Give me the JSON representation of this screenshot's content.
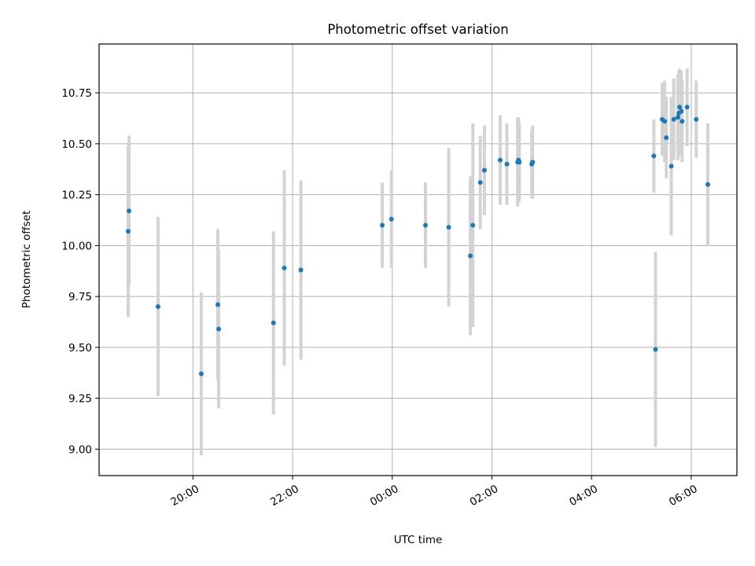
{
  "chart_data": {
    "type": "scatter",
    "title": "Photometric offset variation",
    "xlabel": "UTC time",
    "ylabel": "Photometric offset",
    "x_time_range": [
      "18:07",
      "06:55"
    ],
    "ylim": [
      8.87,
      10.99
    ],
    "x_ticks": [
      "20:00",
      "22:00",
      "00:00",
      "02:00",
      "04:00",
      "06:00"
    ],
    "y_ticks": [
      "9.00",
      "9.25",
      "9.50",
      "9.75",
      "10.00",
      "10.25",
      "10.50",
      "10.75"
    ],
    "grid": true,
    "point_color": "#1f77b4",
    "errorbar_color": "#d3d3d3",
    "points": [
      {
        "t": "18:42",
        "y": 10.07,
        "err": 0.42
      },
      {
        "t": "18:43",
        "y": 10.17,
        "err": 0.37
      },
      {
        "t": "19:18",
        "y": 9.7,
        "err": 0.44
      },
      {
        "t": "20:10",
        "y": 9.37,
        "err": 0.4
      },
      {
        "t": "20:30",
        "y": 9.71,
        "err": 0.37
      },
      {
        "t": "20:31",
        "y": 9.59,
        "err": 0.39
      },
      {
        "t": "21:37",
        "y": 9.62,
        "err": 0.45
      },
      {
        "t": "21:50",
        "y": 9.89,
        "err": 0.48
      },
      {
        "t": "22:10",
        "y": 9.88,
        "err": 0.44
      },
      {
        "t": "23:48",
        "y": 10.1,
        "err": 0.21
      },
      {
        "t": "23:59",
        "y": 10.13,
        "err": 0.24
      },
      {
        "t": "00:40",
        "y": 10.1,
        "err": 0.21
      },
      {
        "t": "01:08",
        "y": 10.09,
        "err": 0.39
      },
      {
        "t": "01:34",
        "y": 9.95,
        "err": 0.39
      },
      {
        "t": "01:37",
        "y": 10.1,
        "err": 0.5
      },
      {
        "t": "01:46",
        "y": 10.31,
        "err": 0.23
      },
      {
        "t": "01:51",
        "y": 10.37,
        "err": 0.22
      },
      {
        "t": "02:10",
        "y": 10.42,
        "err": 0.22
      },
      {
        "t": "02:18",
        "y": 10.4,
        "err": 0.2
      },
      {
        "t": "02:31",
        "y": 10.41,
        "err": 0.22
      },
      {
        "t": "02:32",
        "y": 10.42,
        "err": 0.21
      },
      {
        "t": "02:33",
        "y": 10.41,
        "err": 0.19
      },
      {
        "t": "02:48",
        "y": 10.4,
        "err": 0.17
      },
      {
        "t": "02:49",
        "y": 10.41,
        "err": 0.18
      },
      {
        "t": "05:15",
        "y": 10.44,
        "err": 0.18
      },
      {
        "t": "05:17",
        "y": 9.49,
        "err": 0.48
      },
      {
        "t": "05:25",
        "y": 10.62,
        "err": 0.18
      },
      {
        "t": "05:28",
        "y": 10.61,
        "err": 0.2
      },
      {
        "t": "05:30",
        "y": 10.53,
        "err": 0.2
      },
      {
        "t": "05:36",
        "y": 10.39,
        "err": 0.34
      },
      {
        "t": "05:39",
        "y": 10.62,
        "err": 0.2
      },
      {
        "t": "05:44",
        "y": 10.63,
        "err": 0.21
      },
      {
        "t": "05:45",
        "y": 10.65,
        "err": 0.21
      },
      {
        "t": "05:46",
        "y": 10.68,
        "err": 0.19
      },
      {
        "t": "05:48",
        "y": 10.66,
        "err": 0.2
      },
      {
        "t": "05:49",
        "y": 10.61,
        "err": 0.2
      },
      {
        "t": "05:55",
        "y": 10.68,
        "err": 0.19
      },
      {
        "t": "06:06",
        "y": 10.62,
        "err": 0.19
      },
      {
        "t": "06:20",
        "y": 10.3,
        "err": 0.3
      }
    ]
  }
}
